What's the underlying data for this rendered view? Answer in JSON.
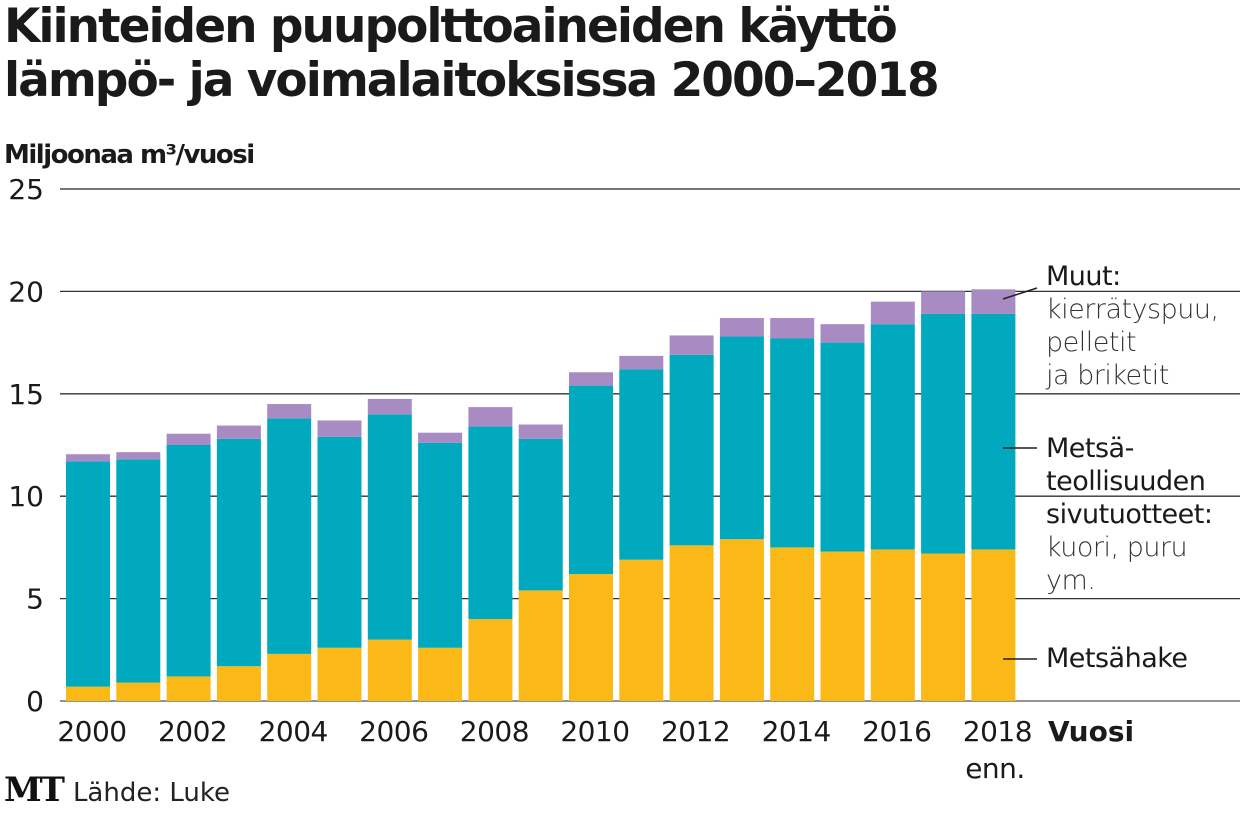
{
  "header": {
    "title_line1": "Kiinteiden puupolttoaineiden käyttö",
    "title_line2": "lämpö- ja voimalaitoksissa 2000–2018"
  },
  "footer": {
    "logo": "MT",
    "source": "Lähde: Luke"
  },
  "legend": {
    "muut_title": "Muut:",
    "muut_desc": [
      "kierrätyspuu,",
      "pelletit",
      "ja briketit"
    ],
    "sivu_title": [
      "Metsä-",
      "teollisuuden",
      "sivutuotteet:"
    ],
    "sivu_desc": [
      "kuori, puru",
      "ym."
    ],
    "hake_title": "Metsähake"
  },
  "colors": {
    "metsahake": "#fbb918",
    "sivutuotteet": "#00a9bd",
    "muut": "#a98bc3",
    "grid": "#444444"
  },
  "chart_data": {
    "type": "bar",
    "stacked": true,
    "title": "Kiinteiden puupolttoaineiden käyttö lämpö- ja voimalaitoksissa 2000–2018",
    "ylabel": "Miljoonaa m³/vuosi",
    "xlabel": "Vuosi",
    "ylim": [
      0,
      25
    ],
    "yticks": [
      0,
      5,
      10,
      15,
      20,
      25
    ],
    "grid": true,
    "legend_position": "right",
    "categories": [
      "2000",
      "2001",
      "2002",
      "2003",
      "2004",
      "2005",
      "2006",
      "2007",
      "2008",
      "2009",
      "2010",
      "2011",
      "2012",
      "2013",
      "2014",
      "2015",
      "2016",
      "2017",
      "2018"
    ],
    "xtick_labels": [
      "2000",
      "2002",
      "2004",
      "2006",
      "2008",
      "2010",
      "2012",
      "2014",
      "2016",
      "2018"
    ],
    "xtick_note": "enn.",
    "series": [
      {
        "name": "Metsähake",
        "color_key": "metsahake",
        "values": [
          0.7,
          0.9,
          1.2,
          1.7,
          2.3,
          2.6,
          3.0,
          2.6,
          4.0,
          5.4,
          6.2,
          6.9,
          7.6,
          7.9,
          7.5,
          7.3,
          7.4,
          7.2,
          7.4
        ]
      },
      {
        "name": "Metsäteollisuuden sivutuotteet",
        "color_key": "sivutuotteet",
        "values": [
          11.0,
          10.9,
          11.3,
          11.1,
          11.5,
          10.3,
          11.0,
          10.0,
          9.4,
          7.4,
          9.2,
          9.3,
          9.3,
          9.9,
          10.2,
          10.2,
          11.0,
          11.7,
          11.5
        ]
      },
      {
        "name": "Muut: kierrätyspuu, pelletit ja briketit",
        "color_key": "muut",
        "values": [
          0.35,
          0.35,
          0.55,
          0.65,
          0.7,
          0.8,
          0.75,
          0.5,
          0.95,
          0.7,
          0.65,
          0.65,
          0.95,
          0.9,
          1.0,
          0.9,
          1.1,
          1.1,
          1.2
        ]
      }
    ]
  }
}
